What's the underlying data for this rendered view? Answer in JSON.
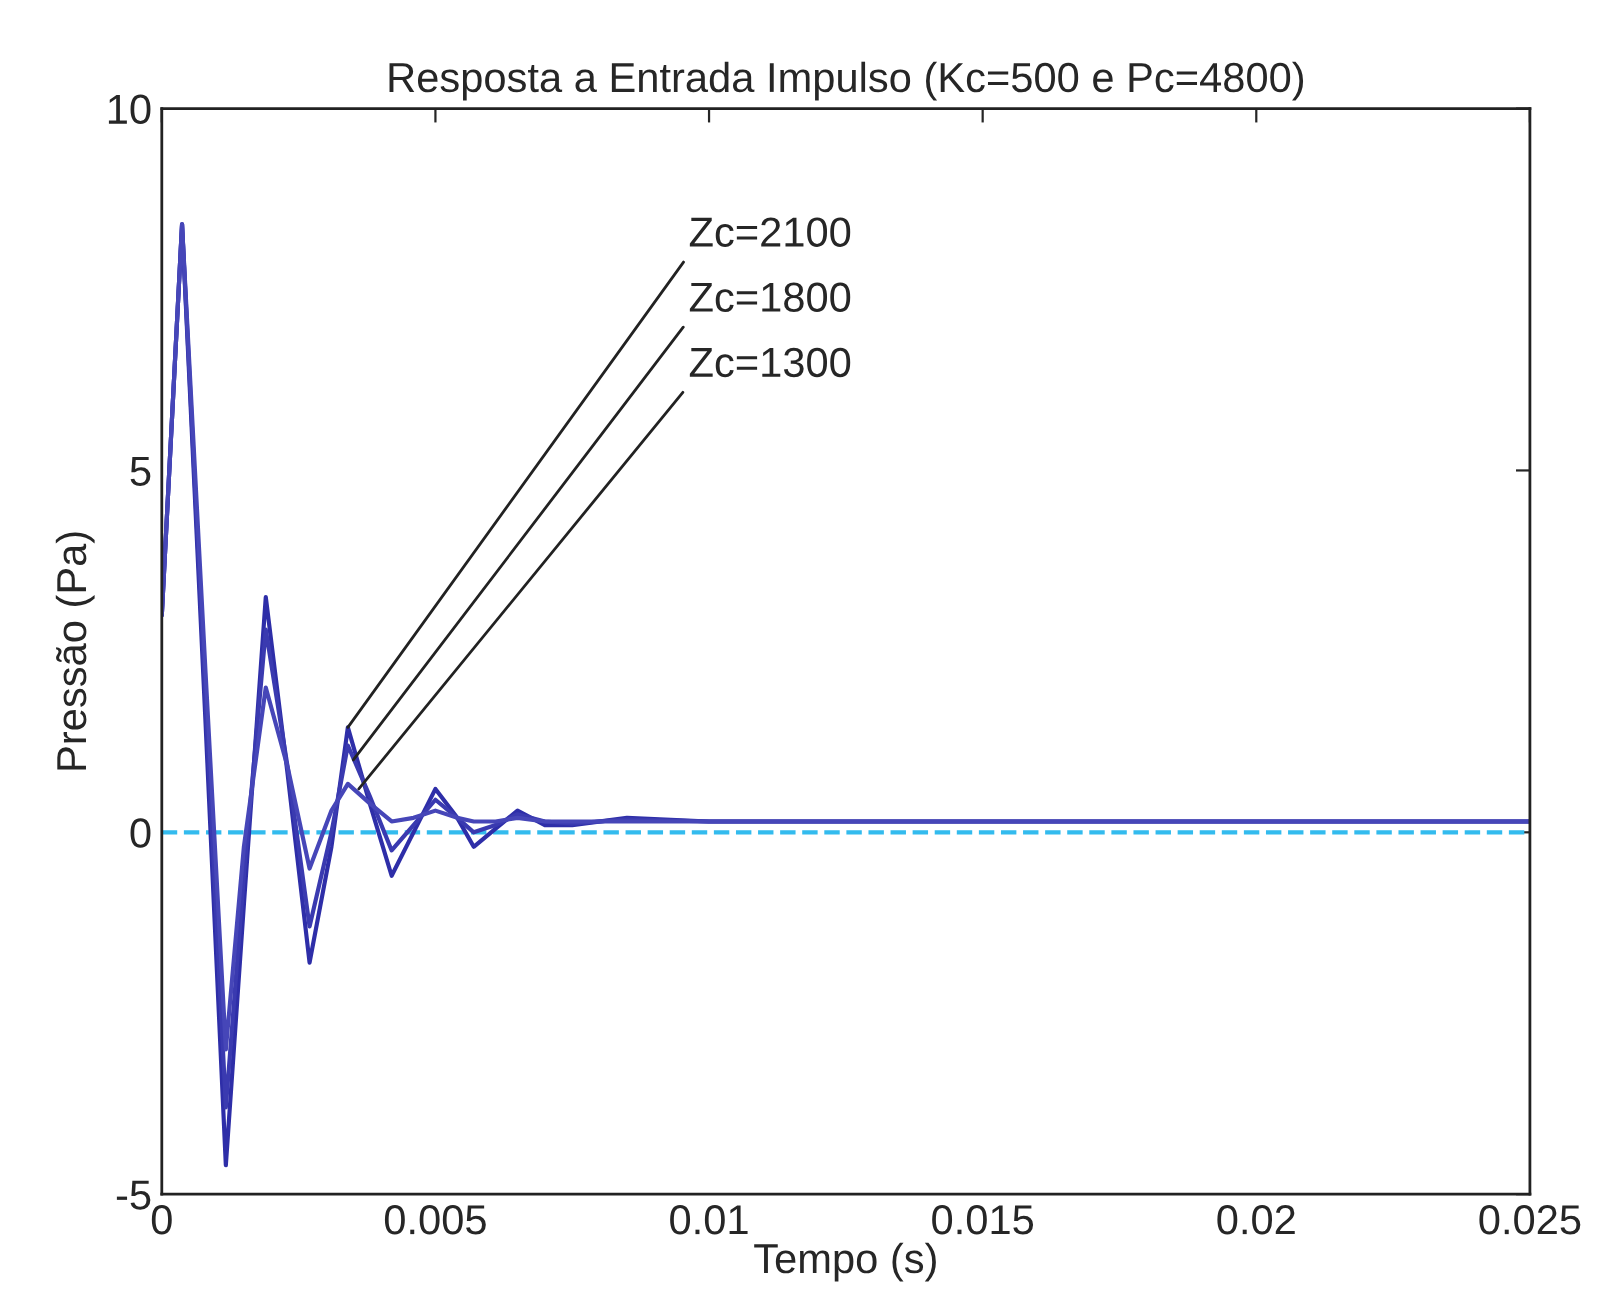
{
  "chart_data": {
    "type": "line",
    "title": "Resposta a Entrada Impulso (Kc=500 e Pc=4800)",
    "xlabel": "Tempo (s)",
    "ylabel": "Pressão (Pa)",
    "xlim": [
      0,
      0.025
    ],
    "ylim": [
      -5,
      10
    ],
    "xticks": [
      0,
      0.005,
      0.01,
      0.015,
      0.02,
      0.025
    ],
    "yticks": [
      -5,
      0,
      5,
      10
    ],
    "grid": false,
    "legend": false,
    "line_style": "solid",
    "marker": "none",
    "series": [
      {
        "color": "#2e2ea8",
        "x": [
          0,
          0.00037,
          0.0008,
          0.00117,
          0.0015,
          0.0019,
          0.0023,
          0.0027,
          0.0031,
          0.0034,
          0.0038,
          0.0042,
          0.0046,
          0.005,
          0.0054,
          0.0057,
          0.0061,
          0.0065,
          0.007,
          0.0075,
          0.0085,
          0.01,
          0.025
        ],
        "values": [
          3.0,
          8.4,
          1.5,
          -4.6,
          -1.0,
          3.25,
          0.8,
          -1.8,
          -0.2,
          1.45,
          0.4,
          -0.6,
          0.0,
          0.6,
          0.2,
          -0.2,
          0.05,
          0.3,
          0.1,
          0.1,
          0.2,
          0.15,
          0.15
        ]
      },
      {
        "color": "#3a3ab0",
        "x": [
          0,
          0.00037,
          0.0008,
          0.00117,
          0.0015,
          0.0019,
          0.0023,
          0.0027,
          0.0031,
          0.0034,
          0.0038,
          0.0042,
          0.0046,
          0.005,
          0.0054,
          0.0057,
          0.0061,
          0.0065,
          0.007,
          0.0075,
          0.0085,
          0.01,
          0.025
        ],
        "values": [
          3.0,
          8.4,
          1.8,
          -3.8,
          -0.6,
          2.8,
          0.9,
          -1.3,
          0.0,
          1.2,
          0.5,
          -0.25,
          0.1,
          0.45,
          0.2,
          0.0,
          0.1,
          0.25,
          0.15,
          0.12,
          0.18,
          0.15,
          0.15
        ]
      },
      {
        "color": "#4646b8",
        "x": [
          0,
          0.00037,
          0.0008,
          0.00117,
          0.0015,
          0.0019,
          0.0023,
          0.0027,
          0.0031,
          0.0034,
          0.0038,
          0.0042,
          0.0046,
          0.005,
          0.0054,
          0.0057,
          0.0061,
          0.0065,
          0.007,
          0.0075,
          0.0085,
          0.01,
          0.025
        ],
        "values": [
          3.0,
          8.4,
          2.2,
          -3.0,
          -0.2,
          2.0,
          0.9,
          -0.5,
          0.3,
          0.67,
          0.4,
          0.15,
          0.2,
          0.3,
          0.2,
          0.15,
          0.15,
          0.2,
          0.15,
          0.15,
          0.15,
          0.15,
          0.15
        ]
      }
    ],
    "ref_lines": [
      {
        "axis": "y",
        "value": 0,
        "color": "#33bbee",
        "line_style": "dashed"
      }
    ],
    "annotations": [
      {
        "text": "Zc=2100",
        "x": 0.0034,
        "y": 1.45
      },
      {
        "text": "Zc=1800",
        "x": 0.0035,
        "y": 1.0
      },
      {
        "text": "Zc=1300",
        "x": 0.0036,
        "y": 0.6
      }
    ]
  }
}
